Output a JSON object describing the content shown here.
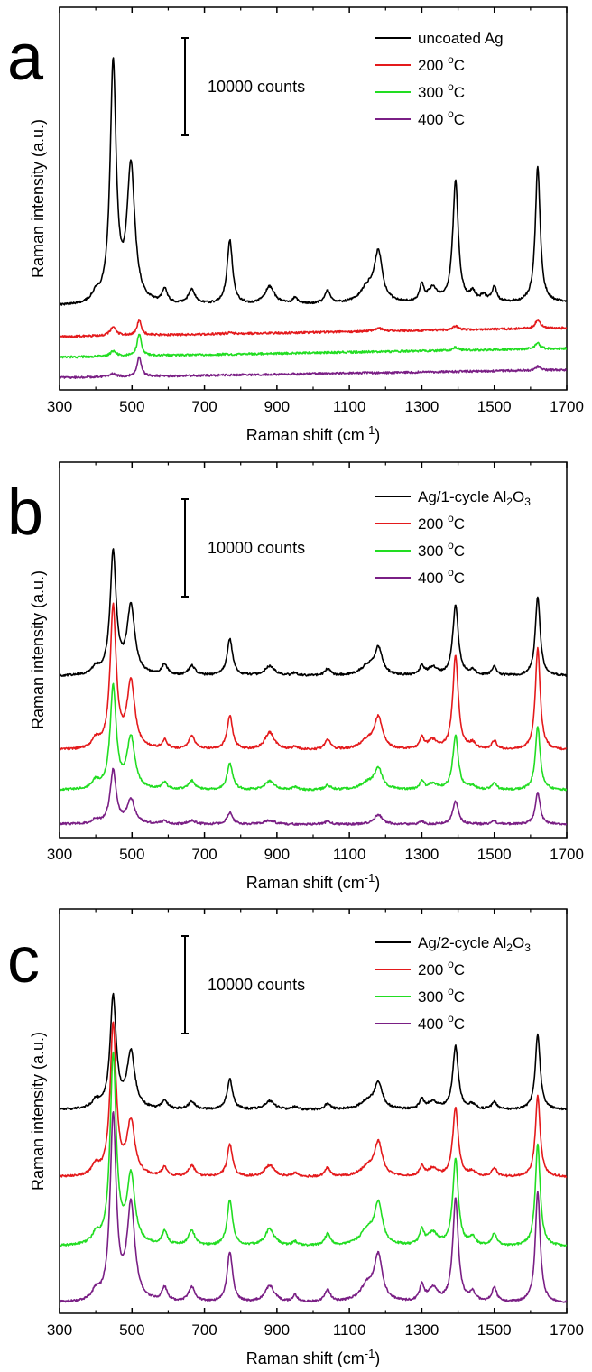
{
  "chart_data": [
    {
      "type": "line",
      "panel_label": "a",
      "xlabel": "Raman shift (cm",
      "xlabel_sup": "-1",
      "xlabel_end": ")",
      "ylabel": "Raman intensity (a.u.)",
      "xlim": [
        300,
        1700
      ],
      "xticks": [
        300,
        500,
        700,
        900,
        1100,
        1300,
        1500,
        1700
      ],
      "xtick_labels": [
        "300",
        "500",
        "700",
        "900",
        "1100",
        "1300",
        "1500",
        "1700"
      ],
      "scale_bar_label": "10000 counts",
      "scale_bar_value": 10000,
      "legend_position": "top-right",
      "series": [
        {
          "name": "uncoated Ag",
          "color": "#000000",
          "offset": 8000,
          "baseline_slope": 400,
          "peaks": [
            [
              400,
              800,
              12
            ],
            [
              448,
              24500,
              10
            ],
            [
              497,
              14000,
              13
            ],
            [
              590,
              1400,
              9
            ],
            [
              665,
              1500,
              11
            ],
            [
              770,
              6600,
              9
            ],
            [
              880,
              1800,
              16
            ],
            [
              950,
              600,
              8
            ],
            [
              1040,
              1300,
              9
            ],
            [
              1150,
              1500,
              24
            ],
            [
              1180,
              5000,
              13
            ],
            [
              1300,
              1700,
              7
            ],
            [
              1330,
              1400,
              16
            ],
            [
              1393,
              12500,
              9
            ],
            [
              1440,
              900,
              10
            ],
            [
              1470,
              600,
              10
            ],
            [
              1500,
              1500,
              8
            ],
            [
              1620,
              14000,
              8
            ]
          ]
        },
        {
          "name": "200 °C",
          "name_base": "200 ",
          "name_sup": "o",
          "name_end": "C",
          "color": "#e41a1c",
          "offset": 4900,
          "baseline_slope": 900,
          "peaks": [
            [
              448,
              900,
              10
            ],
            [
              520,
              1600,
              7
            ],
            [
              770,
              150,
              9
            ],
            [
              1180,
              300,
              14
            ],
            [
              1393,
              400,
              9
            ],
            [
              1620,
              900,
              8
            ]
          ]
        },
        {
          "name": "300 °C",
          "name_base": "300 ",
          "name_sup": "o",
          "name_end": "C",
          "color": "#22dd22",
          "offset": 2800,
          "baseline_slope": 900,
          "peaks": [
            [
              448,
              500,
              10
            ],
            [
              520,
              2300,
              7
            ],
            [
              1393,
              300,
              9
            ],
            [
              1620,
              600,
              8
            ]
          ]
        },
        {
          "name": "400 °C",
          "name_base": "400 ",
          "name_sup": "o",
          "name_end": "C",
          "color": "#7a1f85",
          "offset": 700,
          "baseline_slope": 800,
          "peaks": [
            [
              448,
              300,
              10
            ],
            [
              520,
              2000,
              7
            ],
            [
              1620,
              400,
              8
            ]
          ]
        }
      ]
    },
    {
      "type": "line",
      "panel_label": "b",
      "xlabel": "Raman shift (cm",
      "xlabel_sup": "-1",
      "xlabel_end": ")",
      "ylabel": "Raman intensity (a.u.)",
      "xlim": [
        300,
        1700
      ],
      "xticks": [
        300,
        500,
        700,
        900,
        1100,
        1300,
        1500,
        1700
      ],
      "xtick_labels": [
        "300",
        "500",
        "700",
        "900",
        "1100",
        "1300",
        "1500",
        "1700"
      ],
      "scale_bar_label": "10000 counts",
      "scale_bar_value": 10000,
      "legend_position": "top-right",
      "series": [
        {
          "name": "Ag/1-cycle Al2O3",
          "name_base": "Ag/1-cycle Al",
          "name_sub1": "2",
          "name_mid": "O",
          "name_sub2": "3",
          "color": "#000000",
          "offset": 16000,
          "baseline_slope": 0,
          "peaks": [
            [
              400,
              700,
              12
            ],
            [
              448,
              12500,
              10
            ],
            [
              497,
              7000,
              13
            ],
            [
              590,
              1100,
              9
            ],
            [
              665,
              1000,
              11
            ],
            [
              770,
              3800,
              9
            ],
            [
              880,
              1000,
              16
            ],
            [
              950,
              300,
              8
            ],
            [
              1040,
              700,
              9
            ],
            [
              1150,
              900,
              24
            ],
            [
              1180,
              2700,
              13
            ],
            [
              1300,
              1000,
              7
            ],
            [
              1330,
              800,
              16
            ],
            [
              1393,
              7300,
              9
            ],
            [
              1440,
              500,
              10
            ],
            [
              1500,
              900,
              8
            ],
            [
              1620,
              8200,
              8
            ]
          ]
        },
        {
          "name": "200 °C",
          "name_base": "200 ",
          "name_sup": "o",
          "name_end": "C",
          "color": "#e41a1c",
          "offset": 8400,
          "baseline_slope": 0,
          "peaks": [
            [
              400,
              900,
              12
            ],
            [
              448,
              14500,
              10
            ],
            [
              497,
              6800,
              13
            ],
            [
              590,
              900,
              9
            ],
            [
              665,
              1400,
              11
            ],
            [
              770,
              3500,
              9
            ],
            [
              880,
              1800,
              16
            ],
            [
              950,
              300,
              8
            ],
            [
              1040,
              1000,
              9
            ],
            [
              1150,
              900,
              24
            ],
            [
              1180,
              3200,
              13
            ],
            [
              1300,
              1200,
              7
            ],
            [
              1330,
              900,
              16
            ],
            [
              1393,
              9700,
              9
            ],
            [
              1440,
              600,
              10
            ],
            [
              1500,
              900,
              8
            ],
            [
              1620,
              10500,
              8
            ]
          ]
        },
        {
          "name": "300 °C",
          "name_base": "300 ",
          "name_sup": "o",
          "name_end": "C",
          "color": "#22dd22",
          "offset": 4300,
          "baseline_slope": 0,
          "peaks": [
            [
              400,
              800,
              12
            ],
            [
              448,
              10500,
              10
            ],
            [
              497,
              5300,
              13
            ],
            [
              590,
              700,
              9
            ],
            [
              665,
              900,
              11
            ],
            [
              770,
              2700,
              9
            ],
            [
              880,
              900,
              16
            ],
            [
              950,
              300,
              8
            ],
            [
              1040,
              500,
              9
            ],
            [
              1150,
              700,
              24
            ],
            [
              1180,
              2100,
              13
            ],
            [
              1300,
              800,
              7
            ],
            [
              1330,
              600,
              16
            ],
            [
              1393,
              5600,
              9
            ],
            [
              1440,
              400,
              10
            ],
            [
              1500,
              700,
              8
            ],
            [
              1620,
              6600,
              8
            ]
          ]
        },
        {
          "name": "400 °C",
          "name_base": "400 ",
          "name_sup": "o",
          "name_end": "C",
          "color": "#7a1f85",
          "offset": 800,
          "baseline_slope": 0,
          "peaks": [
            [
              400,
              400,
              12
            ],
            [
              448,
              5500,
              10
            ],
            [
              497,
              2500,
              13
            ],
            [
              590,
              300,
              9
            ],
            [
              665,
              400,
              11
            ],
            [
              770,
              1200,
              9
            ],
            [
              880,
              400,
              16
            ],
            [
              1040,
              300,
              9
            ],
            [
              1180,
              1000,
              13
            ],
            [
              1300,
              300,
              7
            ],
            [
              1393,
              2400,
              9
            ],
            [
              1500,
              300,
              8
            ],
            [
              1620,
              3300,
              8
            ]
          ]
        }
      ]
    },
    {
      "type": "line",
      "panel_label": "c",
      "xlabel": "Raman shift (cm",
      "xlabel_sup": "-1",
      "xlabel_end": ")",
      "ylabel": "Raman intensity (a.u.)",
      "xlim": [
        300,
        1700
      ],
      "xticks": [
        300,
        500,
        700,
        900,
        1100,
        1300,
        1500,
        1700
      ],
      "xtick_labels": [
        "300",
        "500",
        "700",
        "900",
        "1100",
        "1300",
        "1500",
        "1700"
      ],
      "scale_bar_label": "10000 counts",
      "scale_bar_value": 10000,
      "legend_position": "top-right",
      "series": [
        {
          "name": "Ag/2-cycle Al2O3",
          "name_base": "Ag/2-cycle Al",
          "name_sub1": "2",
          "name_mid": "O",
          "name_sub2": "3",
          "color": "#000000",
          "offset": 20300,
          "baseline_slope": 0,
          "peaks": [
            [
              400,
              800,
              12
            ],
            [
              448,
              11500,
              10
            ],
            [
              497,
              5800,
              13
            ],
            [
              590,
              900,
              9
            ],
            [
              665,
              800,
              11
            ],
            [
              770,
              3100,
              9
            ],
            [
              880,
              900,
              16
            ],
            [
              950,
              300,
              8
            ],
            [
              1040,
              600,
              9
            ],
            [
              1150,
              800,
              24
            ],
            [
              1180,
              2600,
              13
            ],
            [
              1300,
              1000,
              7
            ],
            [
              1330,
              800,
              16
            ],
            [
              1393,
              6500,
              9
            ],
            [
              1440,
              500,
              10
            ],
            [
              1500,
              800,
              8
            ],
            [
              1620,
              7800,
              8
            ]
          ]
        },
        {
          "name": "200 °C",
          "name_base": "200 ",
          "name_sup": "o",
          "name_end": "C",
          "color": "#e41a1c",
          "offset": 13400,
          "baseline_slope": 0,
          "peaks": [
            [
              400,
              1000,
              12
            ],
            [
              448,
              15500,
              10
            ],
            [
              497,
              5500,
              13
            ],
            [
              590,
              900,
              9
            ],
            [
              665,
              1100,
              11
            ],
            [
              770,
              3300,
              9
            ],
            [
              880,
              1200,
              16
            ],
            [
              950,
              400,
              8
            ],
            [
              1040,
              900,
              9
            ],
            [
              1150,
              900,
              24
            ],
            [
              1180,
              3400,
              13
            ],
            [
              1300,
              1000,
              7
            ],
            [
              1330,
              800,
              16
            ],
            [
              1393,
              7100,
              9
            ],
            [
              1440,
              500,
              10
            ],
            [
              1500,
              900,
              8
            ],
            [
              1620,
              8300,
              8
            ]
          ]
        },
        {
          "name": "300 °C",
          "name_base": "300 ",
          "name_sup": "o",
          "name_end": "C",
          "color": "#22dd22",
          "offset": 6300,
          "baseline_slope": 0,
          "peaks": [
            [
              400,
              900,
              12
            ],
            [
              448,
              19500,
              10
            ],
            [
              497,
              7000,
              13
            ],
            [
              590,
              1400,
              9
            ],
            [
              665,
              1500,
              11
            ],
            [
              770,
              4700,
              9
            ],
            [
              880,
              1700,
              16
            ],
            [
              950,
              400,
              8
            ],
            [
              1040,
              1200,
              9
            ],
            [
              1150,
              1500,
              24
            ],
            [
              1180,
              4100,
              13
            ],
            [
              1300,
              1600,
              7
            ],
            [
              1330,
              1300,
              16
            ],
            [
              1393,
              8900,
              9
            ],
            [
              1440,
              800,
              10
            ],
            [
              1500,
              1200,
              8
            ],
            [
              1620,
              10500,
              8
            ]
          ]
        },
        {
          "name": "400 °C",
          "name_base": "400 ",
          "name_sup": "o",
          "name_end": "C",
          "color": "#7a1f85",
          "offset": 500,
          "baseline_slope": 0,
          "peaks": [
            [
              400,
              900,
              12
            ],
            [
              448,
              19000,
              10
            ],
            [
              497,
              9800,
              13
            ],
            [
              590,
              1400,
              9
            ],
            [
              665,
              1500,
              11
            ],
            [
              770,
              5200,
              9
            ],
            [
              880,
              1700,
              16
            ],
            [
              950,
              700,
              8
            ],
            [
              1040,
              1300,
              9
            ],
            [
              1150,
              1700,
              24
            ],
            [
              1180,
              4500,
              13
            ],
            [
              1300,
              1600,
              7
            ],
            [
              1330,
              1400,
              16
            ],
            [
              1393,
              10600,
              9
            ],
            [
              1440,
              900,
              10
            ],
            [
              1500,
              1500,
              8
            ],
            [
              1620,
              11400,
              8
            ]
          ]
        }
      ]
    }
  ]
}
